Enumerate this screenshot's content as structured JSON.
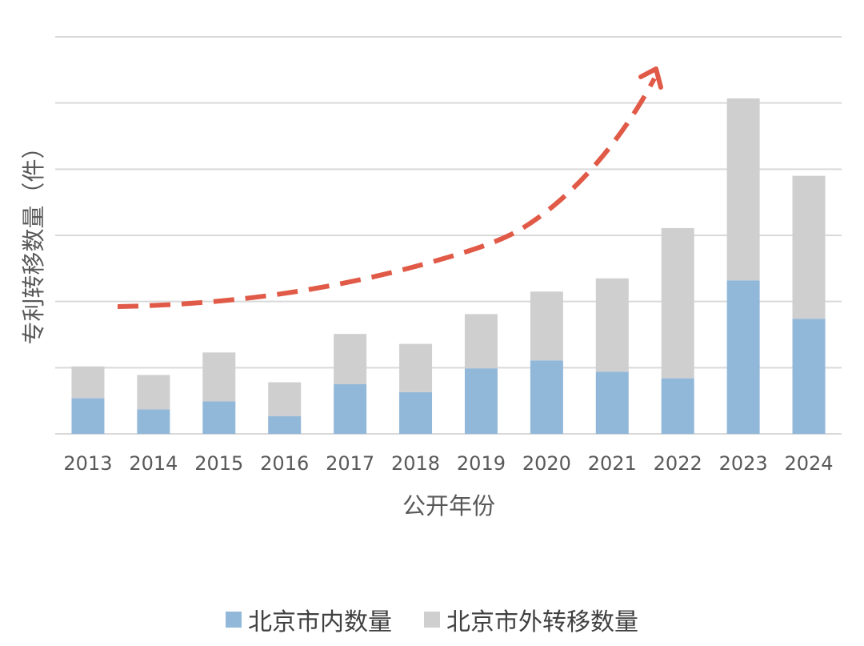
{
  "chart_data": {
    "type": "bar",
    "stacked": true,
    "categories": [
      "2013",
      "2014",
      "2015",
      "2016",
      "2017",
      "2018",
      "2019",
      "2020",
      "2021",
      "2022",
      "2023",
      "2024"
    ],
    "series": [
      {
        "name": "北京市内数量",
        "color": "#92b8d9",
        "values": [
          0.54,
          0.37,
          0.49,
          0.27,
          0.75,
          0.63,
          0.99,
          1.11,
          0.94,
          0.84,
          2.32,
          1.74
        ]
      },
      {
        "name": "北京市外转移数量",
        "color": "#d0cfd0",
        "values": [
          0.48,
          0.52,
          0.74,
          0.51,
          0.76,
          0.73,
          0.82,
          1.04,
          1.41,
          2.27,
          2.75,
          2.16
        ]
      }
    ],
    "xlabel": "公开年份",
    "ylabel": "专利转移数量（件）",
    "ylim": [
      0,
      6
    ],
    "y_tick_labels_shown": false,
    "grid": true,
    "legend_position": "bottom",
    "trend_arrow": {
      "color": "#e05a47",
      "style": "dashed",
      "direction": "upward"
    }
  }
}
